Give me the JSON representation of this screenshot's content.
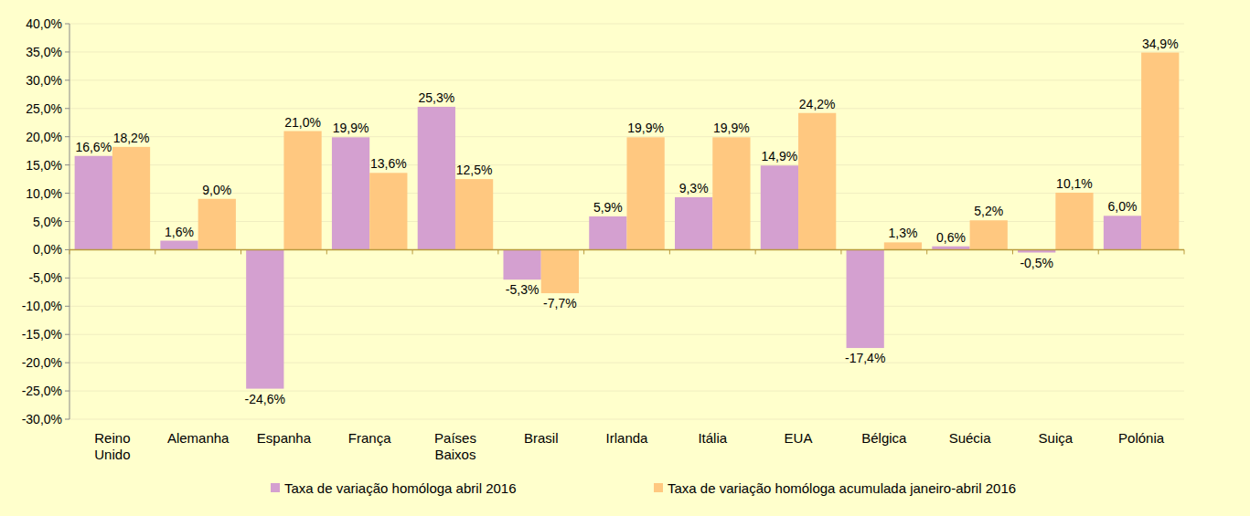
{
  "chart_data": {
    "type": "bar",
    "categories": [
      "Reino Unido",
      "Alemanha",
      "Espanha",
      "França",
      "Países Baixos",
      "Brasil",
      "Irlanda",
      "Itália",
      "EUA",
      "Bélgica",
      "Suécia",
      "Suiça",
      "Polónia"
    ],
    "series": [
      {
        "name": "Taxa de variação homóloga abril 2016",
        "color": "#D4A0D0",
        "values": [
          16.6,
          1.6,
          -24.6,
          19.9,
          25.3,
          -5.3,
          5.9,
          9.3,
          14.9,
          -17.4,
          0.6,
          -0.5,
          6.0
        ],
        "value_labels": [
          "16,6%",
          "1,6%",
          "-24,6%",
          "19,9%",
          "25,3%",
          "-5,3%",
          "5,9%",
          "9,3%",
          "14,9%",
          "-17,4%",
          "0,6%",
          "-0,5%",
          "6,0%"
        ]
      },
      {
        "name": "Taxa de variação homóloga acumulada janeiro-abril 2016",
        "color": "#FFC880",
        "values": [
          18.2,
          9.0,
          21.0,
          13.6,
          12.5,
          -7.7,
          19.9,
          19.9,
          24.2,
          1.3,
          5.2,
          10.1,
          34.9
        ],
        "value_labels": [
          "18,2%",
          "9,0%",
          "21,0%",
          "13,6%",
          "12,5%",
          "-7,7%",
          "19,9%",
          "19,9%",
          "24,2%",
          "1,3%",
          "5,2%",
          "10,1%",
          "34,9%"
        ]
      }
    ],
    "ylim": [
      -30,
      40
    ],
    "yticks": [
      {
        "value": -30,
        "label": "-30,0%"
      },
      {
        "value": -25,
        "label": "-25,0%"
      },
      {
        "value": -20,
        "label": "-20,0%"
      },
      {
        "value": -15,
        "label": "-15,0%"
      },
      {
        "value": -10,
        "label": "-10,0%"
      },
      {
        "value": -5,
        "label": "-5,0%"
      },
      {
        "value": 0,
        "label": "0,0%"
      },
      {
        "value": 5,
        "label": "5,0%"
      },
      {
        "value": 10,
        "label": "10,0%"
      },
      {
        "value": 15,
        "label": "15,0%"
      },
      {
        "value": 20,
        "label": "20,0%"
      },
      {
        "value": 25,
        "label": "25,0%"
      },
      {
        "value": 30,
        "label": "30,0%"
      },
      {
        "value": 35,
        "label": "35,0%"
      },
      {
        "value": 40,
        "label": "40,0%"
      }
    ],
    "grid": true,
    "data_labels": true,
    "legend": "bottom"
  }
}
